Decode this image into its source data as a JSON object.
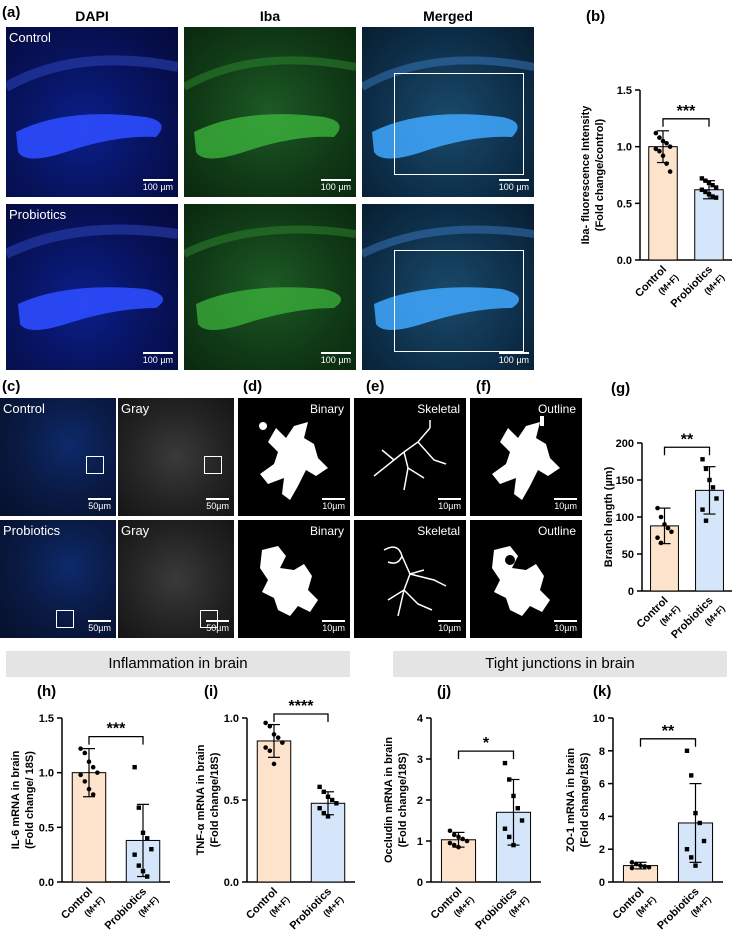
{
  "panel_labels": {
    "a": "(a)",
    "b": "(b)",
    "c": "(c)",
    "d": "(d)",
    "e": "(e)",
    "f": "(f)",
    "g": "(g)",
    "h": "(h)",
    "i": "(i)",
    "j": "(j)",
    "k": "(k)"
  },
  "panel_a": {
    "column_headers": [
      "DAPI",
      "Iba",
      "Merged"
    ],
    "row_labels": [
      "Control",
      "Probiotics"
    ],
    "scale_bar": "100 µm"
  },
  "panel_c": {
    "row_labels": [
      "Control",
      "Probiotics"
    ],
    "gray_label": "Gray",
    "scale_bar": "50µm"
  },
  "panel_def": {
    "binary_label": "Binary",
    "skeletal_label": "Skeletal",
    "outline_label": "Outline",
    "scale_bar": "10µm"
  },
  "banners": {
    "inflammation": "Inflammation in brain",
    "tight_junctions": "Tight junctions in brain"
  },
  "colors": {
    "control_bar": "#fde3cc",
    "probiotics_bar": "#d6e6fa"
  },
  "group_labels": [
    "Control",
    "Probiotics"
  ],
  "group_sublabel": "(M+F)",
  "chart_data": [
    {
      "id": "b",
      "type": "bar",
      "ylabel": [
        "Iba- fluorescence Intensity",
        "(Fold change/control)"
      ],
      "ylim": [
        0,
        1.5
      ],
      "ticks": [
        "0.0",
        "0.5",
        "1.0",
        "1.5"
      ],
      "values": [
        1.0,
        0.62
      ],
      "errors": [
        0.14,
        0.08
      ],
      "significance": "***",
      "points": [
        [
          1.12,
          1.08,
          1.05,
          1.03,
          1.0,
          0.98,
          0.96,
          0.92,
          0.85,
          0.78
        ],
        [
          0.72,
          0.7,
          0.68,
          0.66,
          0.64,
          0.62,
          0.6,
          0.58,
          0.56,
          0.55
        ]
      ]
    },
    {
      "id": "g",
      "type": "bar",
      "ylabel": [
        "Branch length (µm)"
      ],
      "ylim": [
        0,
        200
      ],
      "ticks": [
        "0",
        "50",
        "100",
        "150",
        "200"
      ],
      "values": [
        88,
        136
      ],
      "errors": [
        24,
        32
      ],
      "significance": "**",
      "points": [
        [
          112,
          100,
          90,
          85,
          80,
          72,
          65
        ],
        [
          178,
          165,
          150,
          140,
          125,
          110,
          95
        ]
      ]
    },
    {
      "id": "h",
      "type": "bar",
      "ylabel": [
        "IL-6 mRNA in brain",
        "(Fold change/ 18S)"
      ],
      "ylim": [
        0,
        1.5
      ],
      "ticks": [
        "0.0",
        "0.5",
        "1.0",
        "1.5"
      ],
      "values": [
        1.0,
        0.38
      ],
      "errors": [
        0.22,
        0.33
      ],
      "significance": "***",
      "points": [
        [
          1.22,
          1.18,
          1.1,
          1.05,
          1.0,
          0.98,
          0.92,
          0.85,
          0.8
        ],
        [
          1.05,
          0.68,
          0.45,
          0.4,
          0.3,
          0.25,
          0.15,
          0.1,
          0.05
        ]
      ]
    },
    {
      "id": "i",
      "type": "bar",
      "ylabel": [
        "TNF-α mRNA in brain",
        "(Fold change/18S)"
      ],
      "ylim": [
        0,
        1.0
      ],
      "ticks": [
        "0.0",
        "0.5",
        "1.0"
      ],
      "values": [
        0.86,
        0.48
      ],
      "errors": [
        0.1,
        0.07
      ],
      "significance": "****",
      "points": [
        [
          0.97,
          0.95,
          0.9,
          0.88,
          0.85,
          0.82,
          0.8,
          0.72
        ],
        [
          0.58,
          0.55,
          0.52,
          0.5,
          0.48,
          0.45,
          0.42,
          0.4
        ]
      ]
    },
    {
      "id": "j",
      "type": "bar",
      "ylabel": [
        "Occludin mRNA in brain",
        "(Fold change/18S)"
      ],
      "ylim": [
        0,
        4
      ],
      "ticks": [
        "0",
        "1",
        "2",
        "3",
        "4"
      ],
      "values": [
        1.03,
        1.7
      ],
      "errors": [
        0.18,
        0.8
      ],
      "significance": "*",
      "points": [
        [
          1.25,
          1.15,
          1.1,
          1.05,
          1.0,
          0.95,
          0.9,
          0.85
        ],
        [
          2.9,
          2.5,
          2.1,
          1.8,
          1.5,
          1.3,
          1.1,
          0.9
        ]
      ]
    },
    {
      "id": "k",
      "type": "bar",
      "ylabel": [
        "ZO-1 mRNA in brain",
        "(Fold change/18S)"
      ],
      "ylim": [
        0,
        10
      ],
      "ticks": [
        "0",
        "2",
        "4",
        "6",
        "8",
        "10"
      ],
      "values": [
        1.0,
        3.6
      ],
      "errors": [
        0.2,
        2.4
      ],
      "significance": "**",
      "points": [
        [
          1.2,
          1.1,
          1.0,
          0.95,
          0.9,
          0.85
        ],
        [
          8.0,
          6.5,
          4.2,
          3.6,
          2.5,
          2.0,
          1.5,
          1.0
        ]
      ]
    }
  ]
}
